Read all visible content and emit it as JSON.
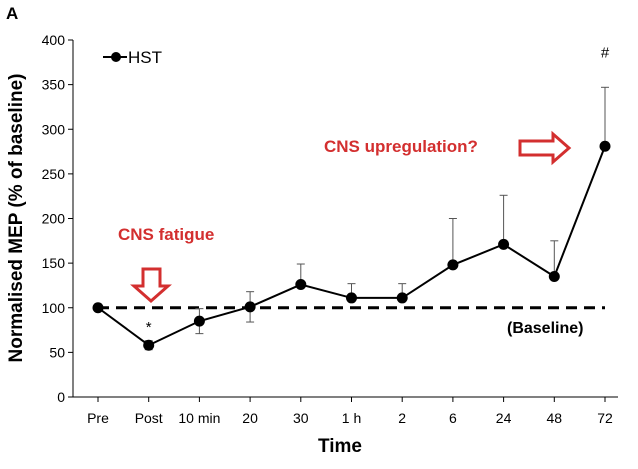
{
  "panel_label": "A",
  "colors": {
    "annotation": "#d32f2f",
    "series": "#000000"
  },
  "chart_data": {
    "type": "line",
    "title": "",
    "xlabel": "Time",
    "ylabel": "Normalised MEP (% of baseline)",
    "ylim": [
      0,
      400
    ],
    "yticks": [
      0,
      50,
      100,
      150,
      200,
      250,
      300,
      350,
      400
    ],
    "categories": [
      "Pre",
      "Post",
      "10 min",
      "20",
      "30",
      "1 h",
      "2",
      "6",
      "24",
      "48",
      "72"
    ],
    "series": [
      {
        "name": "HST",
        "values": [
          100,
          58,
          85,
          101,
          126,
          111,
          111,
          148,
          171,
          135,
          281
        ],
        "error_plus": [
          0,
          5,
          14,
          17,
          23,
          16,
          16,
          52,
          55,
          40,
          66
        ],
        "error_minus": [
          0,
          5,
          14,
          17,
          0,
          0,
          0,
          0,
          0,
          0,
          0
        ]
      }
    ],
    "baseline": {
      "value": 100,
      "label": "(Baseline)"
    },
    "significance": [
      {
        "category": "Post",
        "mark": "*"
      },
      {
        "category": "72",
        "mark": "#"
      }
    ],
    "annotations": [
      {
        "text": "CNS fatigue",
        "arrow": "down",
        "category": "Post"
      },
      {
        "text": "CNS upregulation?",
        "arrow": "right",
        "category": "72"
      }
    ],
    "legend": {
      "position": "top-left",
      "entries": [
        "HST"
      ]
    }
  }
}
